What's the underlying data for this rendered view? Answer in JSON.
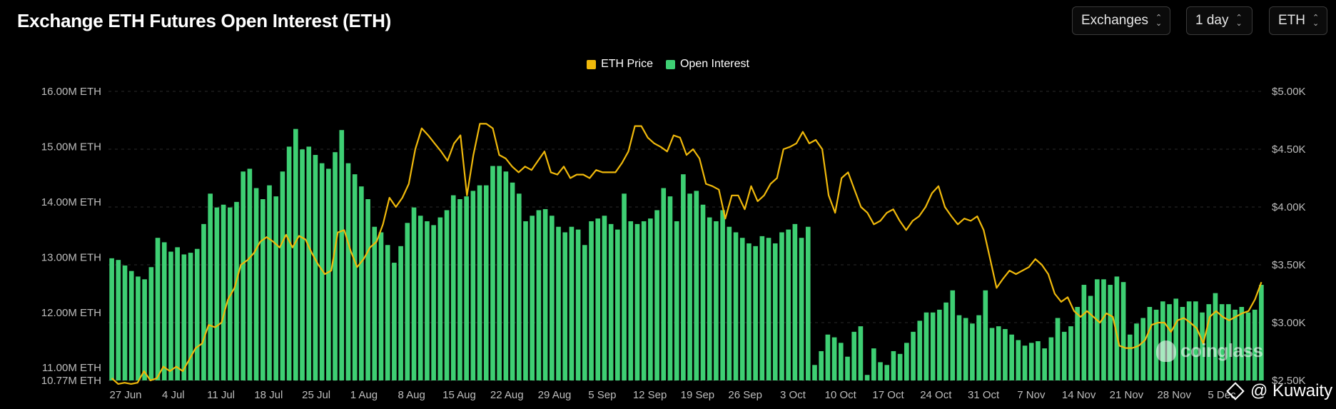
{
  "title": "Exchange ETH Futures Open Interest (ETH)",
  "controls": [
    {
      "label": "Exchanges"
    },
    {
      "label": "1 day"
    },
    {
      "label": "ETH"
    }
  ],
  "colors": {
    "price": "#f0b90b",
    "oi": "#3ecf73",
    "grid": "#2a2a2a",
    "axis_text": "#bdbdbd"
  },
  "watermark": "coinglass",
  "credit": "@ Kuwaity",
  "chart_data": {
    "type": "bar",
    "legend": [
      {
        "name": "ETH Price",
        "color": "#f0b90b"
      },
      {
        "name": "Open Interest",
        "color": "#3ecf73"
      }
    ],
    "x_tick_labels": [
      "27 Jun",
      "4 Jul",
      "11 Jul",
      "18 Jul",
      "25 Jul",
      "1 Aug",
      "8 Aug",
      "15 Aug",
      "22 Aug",
      "29 Aug",
      "5 Sep",
      "12 Sep",
      "19 Sep",
      "26 Sep",
      "3 Oct",
      "10 Oct",
      "17 Oct",
      "24 Oct",
      "31 Oct",
      "7 Nov",
      "14 Nov",
      "21 Nov",
      "28 Nov",
      "5 Dec"
    ],
    "left_axis": {
      "ticks": [
        "10.77M ETH",
        "11.00M ETH",
        "12.00M ETH",
        "13.00M ETH",
        "14.00M ETH",
        "15.00M ETH",
        "16.00M ETH"
      ],
      "tick_values": [
        10.77,
        11,
        12,
        13,
        14,
        15,
        16
      ],
      "ylim": [
        10.77,
        16
      ]
    },
    "right_axis": {
      "ticks": [
        "$2.50K",
        "$3.00K",
        "$3.50K",
        "$4.00K",
        "$4.50K",
        "$5.00K"
      ],
      "tick_values": [
        2.5,
        3,
        3.5,
        4,
        4.5,
        5
      ],
      "ylim": [
        2.5,
        5
      ]
    },
    "series": [
      {
        "name": "Open Interest",
        "type": "bar",
        "unit": "M ETH",
        "values": [
          12.98,
          12.95,
          12.85,
          12.75,
          12.65,
          12.6,
          12.82,
          13.35,
          13.27,
          13.1,
          13.18,
          13.05,
          13.08,
          13.15,
          13.6,
          14.15,
          13.9,
          13.95,
          13.9,
          14.0,
          14.55,
          14.6,
          14.25,
          14.05,
          14.3,
          14.1,
          14.55,
          15.0,
          15.32,
          14.95,
          15.0,
          14.85,
          14.7,
          14.6,
          14.9,
          15.3,
          14.7,
          14.5,
          14.28,
          14.05,
          13.55,
          13.45,
          13.22,
          12.9,
          13.2,
          13.62,
          13.9,
          13.75,
          13.65,
          13.58,
          13.72,
          13.85,
          14.12,
          14.05,
          14.1,
          14.2,
          14.3,
          14.3,
          14.65,
          14.65,
          14.55,
          14.35,
          14.15,
          13.65,
          13.75,
          13.85,
          13.87,
          13.75,
          13.55,
          13.45,
          13.55,
          13.5,
          13.22,
          13.65,
          13.7,
          13.75,
          13.6,
          13.5,
          14.15,
          13.65,
          13.6,
          13.65,
          13.7,
          13.85,
          14.25,
          14.1,
          13.65,
          14.5,
          14.15,
          14.2,
          13.95,
          13.72,
          13.65,
          13.85,
          13.55,
          13.45,
          13.35,
          13.25,
          13.2,
          13.38,
          13.35,
          13.25,
          13.45,
          13.5,
          13.6,
          13.35,
          13.55,
          11.05,
          11.3,
          11.6,
          11.55,
          11.45,
          11.2,
          11.65,
          11.75,
          10.87,
          11.35,
          11.1,
          11.05,
          11.3,
          11.25,
          11.45,
          11.65,
          11.85,
          12.0,
          12.0,
          12.05,
          12.18,
          12.4,
          11.95,
          11.9,
          11.8,
          11.95,
          12.4,
          11.72,
          11.75,
          11.7,
          11.6,
          11.5,
          11.4,
          11.45,
          11.48,
          11.35,
          11.55,
          11.9,
          11.65,
          11.75,
          12.1,
          12.5,
          12.3,
          12.6,
          12.6,
          12.5,
          12.65,
          12.55,
          11.6,
          11.8,
          11.9,
          12.1,
          12.05,
          12.2,
          12.15,
          12.25,
          12.1,
          12.2,
          12.2,
          12.0,
          12.15,
          12.35,
          12.15,
          12.15,
          12.05,
          12.1,
          12.0,
          12.05,
          12.5
        ]
      },
      {
        "name": "ETH Price",
        "type": "line",
        "unit": "$K",
        "values": [
          2.52,
          2.47,
          2.48,
          2.47,
          2.48,
          2.58,
          2.5,
          2.52,
          2.62,
          2.58,
          2.62,
          2.58,
          2.68,
          2.78,
          2.82,
          2.98,
          2.96,
          3.0,
          3.2,
          3.3,
          3.5,
          3.54,
          3.6,
          3.7,
          3.74,
          3.7,
          3.65,
          3.76,
          3.65,
          3.75,
          3.72,
          3.6,
          3.5,
          3.42,
          3.45,
          3.78,
          3.8,
          3.62,
          3.48,
          3.55,
          3.65,
          3.7,
          3.85,
          4.08,
          4.0,
          4.08,
          4.2,
          4.5,
          4.68,
          4.62,
          4.55,
          4.48,
          4.4,
          4.55,
          4.62,
          4.1,
          4.45,
          4.72,
          4.72,
          4.68,
          4.45,
          4.42,
          4.35,
          4.3,
          4.35,
          4.32,
          4.4,
          4.48,
          4.3,
          4.28,
          4.35,
          4.25,
          4.28,
          4.28,
          4.25,
          4.32,
          4.3,
          4.3,
          4.3,
          4.38,
          4.48,
          4.7,
          4.7,
          4.6,
          4.55,
          4.52,
          4.48,
          4.62,
          4.6,
          4.45,
          4.5,
          4.42,
          4.2,
          4.18,
          4.15,
          3.9,
          4.1,
          4.1,
          3.98,
          4.18,
          4.05,
          4.1,
          4.2,
          4.25,
          4.5,
          4.52,
          4.55,
          4.65,
          4.55,
          4.58,
          4.5,
          4.1,
          3.95,
          4.25,
          4.3,
          4.15,
          4.0,
          3.95,
          3.85,
          3.88,
          3.95,
          3.98,
          3.88,
          3.8,
          3.88,
          3.92,
          4.0,
          4.12,
          4.18,
          4.0,
          3.92,
          3.85,
          3.9,
          3.88,
          3.92,
          3.8,
          3.55,
          3.3,
          3.38,
          3.45,
          3.42,
          3.45,
          3.48,
          3.55,
          3.5,
          3.42,
          3.25,
          3.18,
          3.22,
          3.1,
          3.05,
          3.1,
          3.05,
          3.0,
          3.08,
          3.05,
          2.8,
          2.78,
          2.78,
          2.8,
          2.85,
          2.98,
          3.0,
          3.0,
          2.92,
          3.02,
          3.04,
          3.0,
          2.95,
          2.82,
          3.05,
          3.1,
          3.05,
          3.02,
          3.05,
          3.08,
          3.1,
          3.2,
          3.35
        ]
      }
    ]
  }
}
